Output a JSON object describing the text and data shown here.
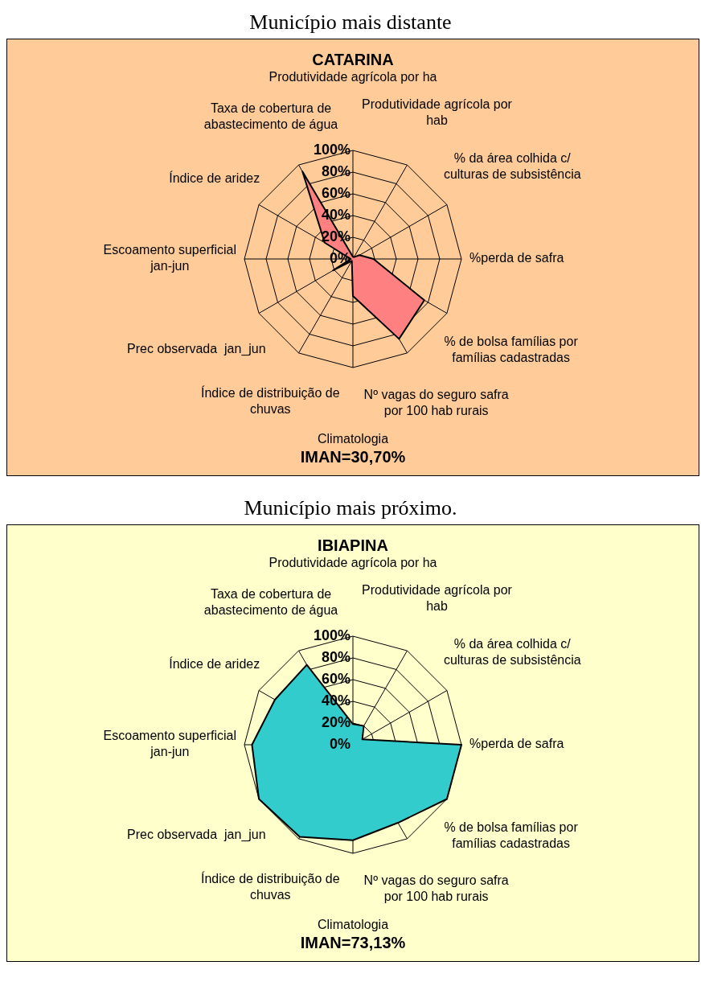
{
  "chart_data": [
    {
      "type": "radar",
      "title": "Município mais distante",
      "subtitle": "CATARINA",
      "categories": [
        "Produtividade agrícola por ha",
        "Produtividade agrícola por hab",
        "% da área colhida c/ culturas de subsistência",
        "%perda de safra",
        "% de bolsa famílias por famílias cadastradas",
        "Nº vagas do seguro safra por 100 hab rurais",
        "Climatologia",
        "Índice de distribuição de chuvas",
        "Prec observada  jan_jun",
        "Escoamento superficial jan-jun",
        "Índice de aridez",
        "Taxa de cobertura de abastecimento de água"
      ],
      "series": [
        {
          "color": "#ff8080",
          "values": [
            2,
            2,
            7,
            19,
            76,
            85,
            34,
            2,
            21,
            2,
            30,
            93
          ]
        }
      ],
      "ylim": [
        0,
        100
      ],
      "yticks": [
        {
          "value": 0,
          "label": "0%"
        },
        {
          "value": 20,
          "label": "20%"
        },
        {
          "value": 40,
          "label": "40%"
        },
        {
          "value": 60,
          "label": "60%"
        },
        {
          "value": 80,
          "label": "80%"
        },
        {
          "value": 100,
          "label": "100%"
        }
      ],
      "grid": true,
      "marker": "none",
      "annotations": [
        "IMAN=30,70%"
      ]
    },
    {
      "type": "radar",
      "title": "Município mais próximo.",
      "subtitle": "IBIAPINA",
      "categories": [
        "Produtividade agrícola por ha",
        "Produtividade agrícola por hab",
        "% da área colhida c/ culturas de subsistência",
        "%perda de safra",
        "% de bolsa famílias por famílias cadastradas",
        "Nº vagas do seguro safra por 100 hab rurais",
        "Climatologia",
        "Índice de distribuição de chuvas",
        "Prec observada  jan_jun",
        "Escoamento superficial jan-jun",
        "Índice de aridez",
        "Taxa de cobertura de abastecimento de água"
      ],
      "series": [
        {
          "color": "#33cccc",
          "values": [
            19,
            20,
            10,
            100,
            100,
            83,
            88,
            98,
            100,
            93,
            83,
            85
          ]
        }
      ],
      "ylim": [
        0,
        100
      ],
      "yticks": [
        {
          "value": 0,
          "label": "0%"
        },
        {
          "value": 20,
          "label": "20%"
        },
        {
          "value": 40,
          "label": "40%"
        },
        {
          "value": 60,
          "label": "60%"
        },
        {
          "value": 80,
          "label": "80%"
        },
        {
          "value": 100,
          "label": "100%"
        }
      ],
      "grid": true,
      "marker": "none",
      "annotations": [
        "IMAN=73,13%"
      ]
    }
  ]
}
